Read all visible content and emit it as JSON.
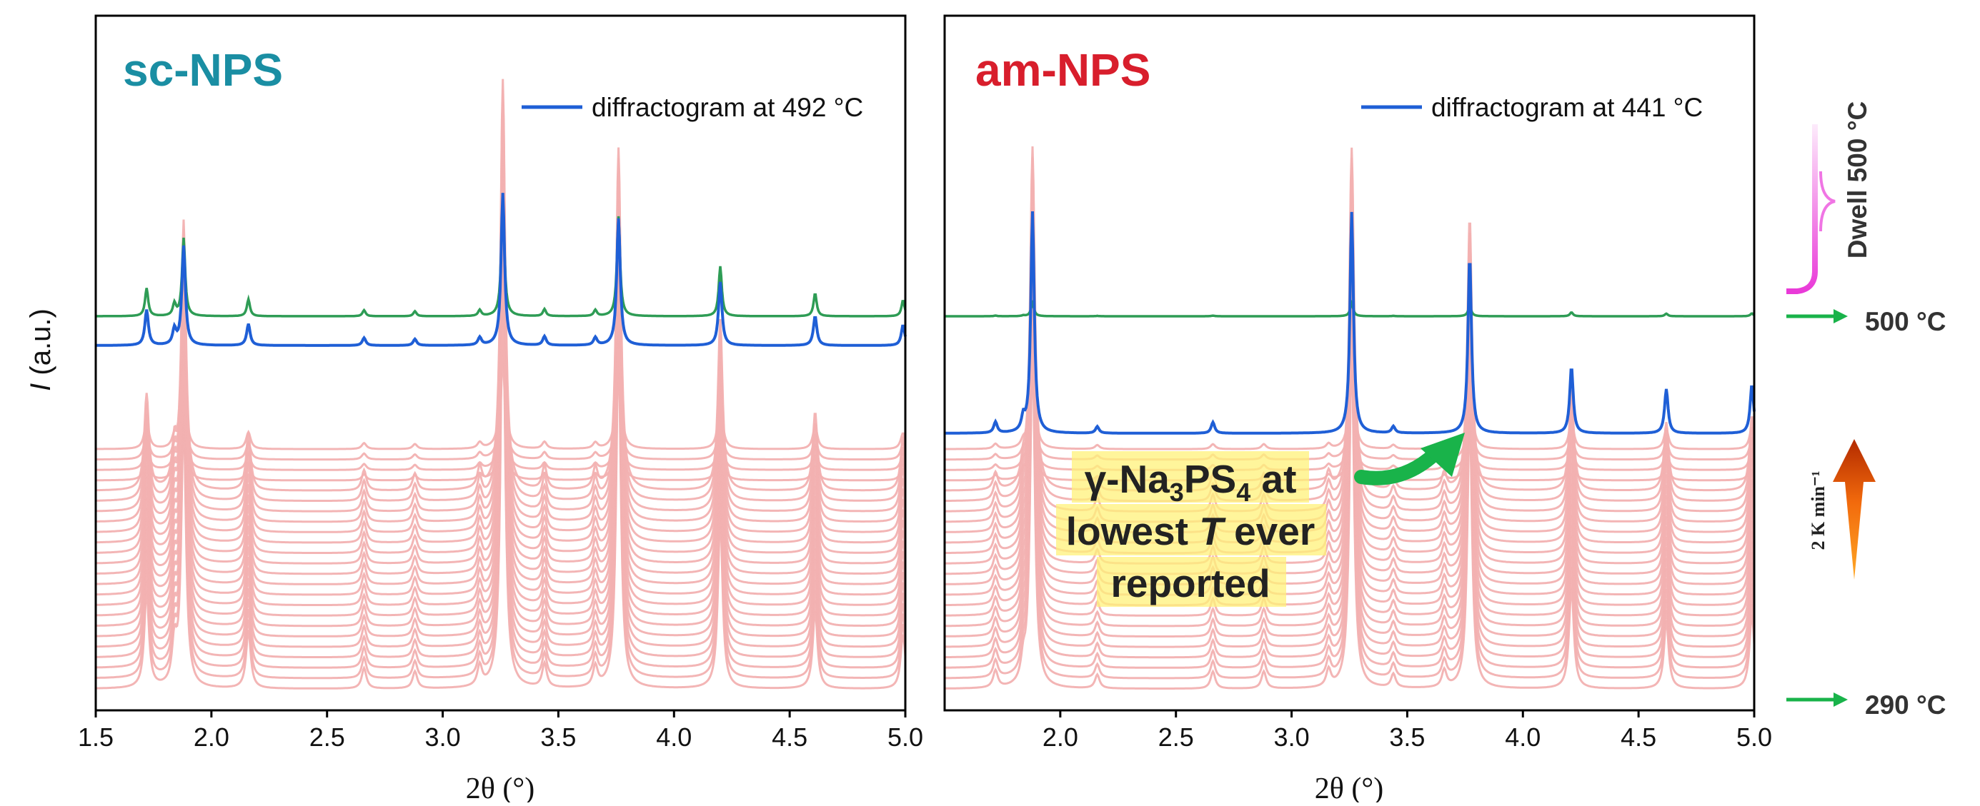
{
  "colors": {
    "background_series": "#f2b1b1",
    "green_series": "#2e9c55",
    "blue_series": "#1f5fd6",
    "sc_title": "#1a8ea3",
    "am_title": "#d81e2c",
    "arrow_green": "#19b34a",
    "dwell_magenta": "#e93ad8",
    "heating_arrow_top": "#b22a00",
    "heating_arrow_bottom": "#ffa826",
    "annotation_highlight": "#fff27a"
  },
  "axes": {
    "ylabel": "I (a.u.)",
    "ylabel_italic": "I",
    "ylabel_rest": " (a.u.)"
  },
  "side": {
    "dwell_label": "Dwell 500 °C",
    "top_temp": "500 °C",
    "bottom_temp": "290 °C",
    "rate_label": "2 K min⁻¹",
    "icons": [
      "green-right-arrow",
      "brace",
      "heating-arrow"
    ]
  },
  "annotation": {
    "line1_gamma": "γ-Na",
    "line1_sub3": "3",
    "line1_ps": "PS",
    "line1_sub4": "4",
    "line1_end": " at",
    "line2_pre": "lowest ",
    "line2_T": "T",
    "line2_post": " ever",
    "line3": "reported"
  },
  "chart_data": [
    {
      "type": "line",
      "title": "sc-NPS",
      "xlabel": "2θ (°)",
      "ylabel": "I (a.u.)",
      "xlim": [
        1.5,
        5.0
      ],
      "xticks": [
        "1.5",
        "2.0",
        "2.5",
        "3.0",
        "3.5",
        "4.0",
        "4.5",
        "5.0"
      ],
      "legend": "diffractogram at 492 °C",
      "legend_position": "top-right",
      "stacked_series_count": 24,
      "peaks_2theta": [
        1.72,
        1.84,
        1.88,
        2.16,
        2.66,
        2.88,
        3.16,
        3.26,
        3.44,
        3.66,
        3.76,
        4.2,
        4.61,
        4.99
      ],
      "series": [
        {
          "name": "diffractogram at 492 °C",
          "peaks": [
            [
              1.72,
              0.28
            ],
            [
              1.84,
              0.12
            ],
            [
              1.88,
              0.78
            ],
            [
              2.16,
              0.17
            ],
            [
              2.66,
              0.06
            ],
            [
              2.88,
              0.05
            ],
            [
              3.16,
              0.06
            ],
            [
              3.26,
              1.2
            ],
            [
              3.44,
              0.07
            ],
            [
              3.66,
              0.06
            ],
            [
              3.76,
              1.0
            ],
            [
              4.2,
              0.5
            ],
            [
              4.61,
              0.23
            ],
            [
              4.99,
              0.16
            ]
          ]
        }
      ]
    },
    {
      "type": "line",
      "title": "am-NPS",
      "xlabel": "2θ (°)",
      "ylabel": "I (a.u.)",
      "xlim": [
        1.5,
        5.0
      ],
      "xticks": [
        "2.0",
        "2.5",
        "3.0",
        "3.5",
        "4.0",
        "4.5",
        "5.0"
      ],
      "legend": "diffractogram at 441 °C",
      "legend_position": "top-right",
      "stacked_series_count": 24,
      "peaks_2theta": [
        1.72,
        1.84,
        1.88,
        2.16,
        2.66,
        2.88,
        3.16,
        3.26,
        3.44,
        3.66,
        3.77,
        4.21,
        4.62,
        4.99
      ],
      "series": [
        {
          "name": "diffractogram at 441 °C",
          "peaks": [
            [
              1.72,
              0.05
            ],
            [
              1.84,
              0.06
            ],
            [
              1.88,
              1.0
            ],
            [
              2.16,
              0.03
            ],
            [
              2.66,
              0.05
            ],
            [
              3.26,
              1.0
            ],
            [
              3.44,
              0.03
            ],
            [
              3.77,
              0.8
            ],
            [
              4.21,
              0.3
            ],
            [
              4.62,
              0.2
            ],
            [
              4.99,
              0.22
            ]
          ]
        }
      ],
      "annotation": "γ-Na3PS4 at lowest T ever reported"
    }
  ]
}
